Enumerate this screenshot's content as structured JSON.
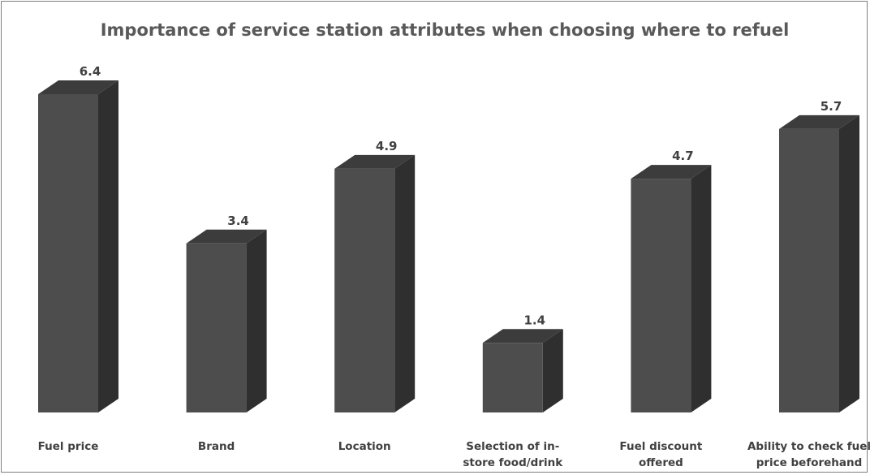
{
  "chart_data": {
    "type": "bar",
    "title": "Importance of service station attributes when choosing where to refuel",
    "xlabel": "",
    "ylabel": "",
    "categories": [
      [
        "Fuel price"
      ],
      [
        "Brand"
      ],
      [
        "Location"
      ],
      [
        "Selection of in-",
        "store food/drink"
      ],
      [
        "Fuel discount",
        "offered"
      ],
      [
        "Ability to check fuel",
        "price beforehand"
      ]
    ],
    "values": [
      6.4,
      3.4,
      4.9,
      1.4,
      4.7,
      5.7
    ],
    "data_labels": [
      "6.4",
      "3.4",
      "4.9",
      "1.4",
      "4.7",
      "5.7"
    ],
    "ylim": [
      0,
      6.4
    ],
    "grid": false,
    "legend": "none",
    "style": "3d-column",
    "colors": {
      "front": "#4d4d4d",
      "side": "#2f2f2f",
      "top": "#3c3c3c",
      "title": "#595959",
      "labels": "#404040",
      "border": "#7f7f7f"
    }
  }
}
